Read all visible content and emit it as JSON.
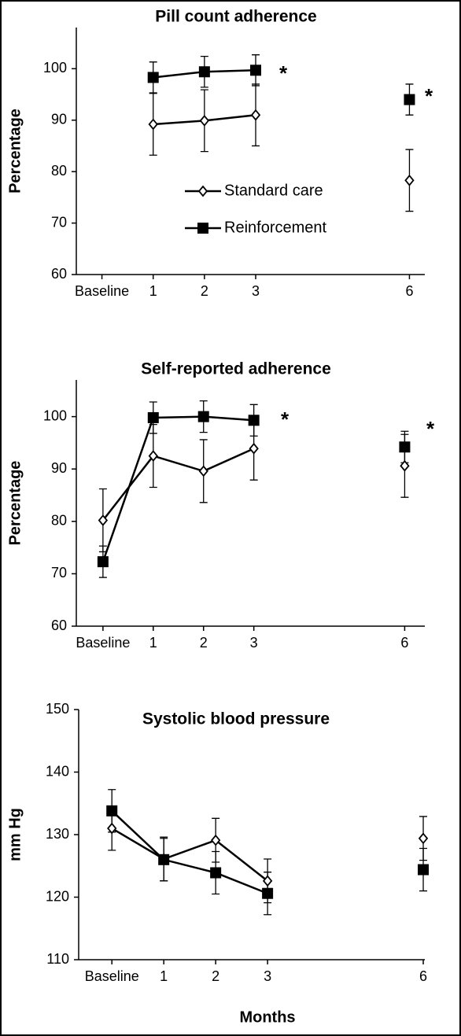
{
  "chart_data": [
    {
      "type": "line",
      "title": "Pill count adherence",
      "ylabel": "Percentage",
      "x": [
        0,
        1,
        2,
        3,
        null,
        6
      ],
      "xlim": [
        -0.5,
        6.3
      ],
      "xticks": [
        {
          "value": 0,
          "label": "Baseline"
        },
        1,
        2,
        3,
        6
      ],
      "ylim": [
        60,
        108
      ],
      "yticks": [
        60,
        70,
        80,
        90,
        100
      ],
      "legend": "center",
      "annotations": [
        "*",
        "*"
      ],
      "series": [
        {
          "name": "Standard care",
          "color": "#000000",
          "marker": "diamond",
          "values": [
            null,
            89.2,
            89.9,
            91.0,
            null,
            78.3
          ],
          "errors": [
            null,
            6,
            6,
            6,
            null,
            6
          ]
        },
        {
          "name": "Reinforcement",
          "color": "#000000",
          "marker": "square",
          "values": [
            null,
            98.3,
            99.4,
            99.7,
            null,
            94.0
          ],
          "errors": [
            null,
            3,
            3,
            3,
            null,
            3
          ]
        }
      ]
    },
    {
      "type": "line",
      "title": "Self-reported adherence",
      "ylabel": "Percentage",
      "x": [
        0,
        1,
        2,
        3,
        null,
        6
      ],
      "xlim": [
        -0.53,
        6.4
      ],
      "xticks": [
        {
          "value": 0,
          "label": "Baseline"
        },
        1,
        2,
        3,
        6
      ],
      "ylim": [
        60,
        107
      ],
      "yticks": [
        60,
        70,
        80,
        90,
        100
      ],
      "annotations": [
        "*",
        "*"
      ],
      "series": [
        {
          "name": "Standard care",
          "color": "#000000",
          "marker": "diamond",
          "values": [
            80.2,
            92.5,
            89.6,
            93.9,
            null,
            90.6
          ],
          "errors": [
            6,
            6,
            6,
            6,
            null,
            6
          ]
        },
        {
          "name": "Reinforcement",
          "color": "#000000",
          "marker": "square",
          "values": [
            72.3,
            99.8,
            100.0,
            99.3,
            null,
            94.2
          ],
          "errors": [
            3,
            3,
            3,
            3,
            null,
            3
          ]
        }
      ]
    },
    {
      "type": "line",
      "title": "Systolic blood pressure",
      "ylabel": "mm Hg",
      "xlabel": "Months",
      "x": [
        0,
        1,
        2,
        3,
        null,
        6
      ],
      "xlim": [
        -0.64,
        6.03
      ],
      "xticks": [
        {
          "value": 0,
          "label": "Baseline"
        },
        1,
        2,
        3,
        6
      ],
      "ylim": [
        110,
        150
      ],
      "yticks": [
        110,
        120,
        130,
        140,
        150
      ],
      "series": [
        {
          "name": "Standard care",
          "color": "#000000",
          "marker": "diamond",
          "values": [
            131.0,
            126.1,
            129.1,
            122.6,
            null,
            129.4
          ],
          "errors": [
            3.5,
            3.5,
            3.5,
            3.5,
            null,
            3.5
          ]
        },
        {
          "name": "Reinforcement",
          "color": "#000000",
          "marker": "square",
          "values": [
            133.8,
            126.0,
            123.9,
            120.6,
            null,
            124.4
          ],
          "errors": [
            3.4,
            3.4,
            3.4,
            3.4,
            null,
            3.4
          ]
        }
      ]
    }
  ]
}
